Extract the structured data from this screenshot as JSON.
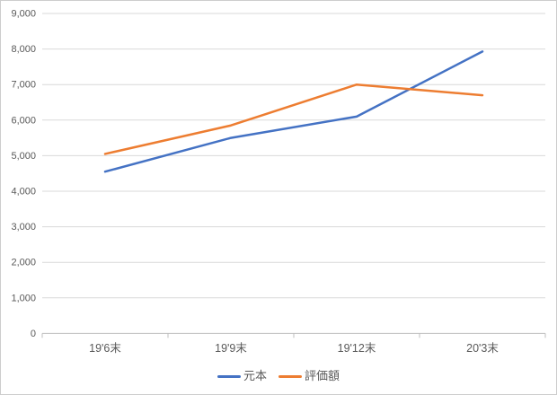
{
  "chart_data": {
    "type": "line",
    "title": "",
    "xlabel": "",
    "ylabel": "",
    "categories": [
      "19'6末",
      "19'9末",
      "19'12末",
      "20'3末"
    ],
    "series": [
      {
        "name": "元本",
        "color": "#4472C4",
        "values": [
          4550,
          5500,
          6100,
          7930
        ]
      },
      {
        "name": "評価額",
        "color": "#ED7D31",
        "values": [
          5050,
          5850,
          7000,
          6700
        ]
      }
    ],
    "ylim": [
      0,
      9000
    ],
    "ytick_interval": 1000,
    "ytick_labels": [
      "0",
      "1,000",
      "2,000",
      "3,000",
      "4,000",
      "5,000",
      "6,000",
      "7,000",
      "8,000",
      "9,000"
    ],
    "grid": true,
    "legend_position": "bottom"
  },
  "colors": {
    "background": "#FFFFFF",
    "gridline": "#D9D9D9",
    "axis_line": "#BFBFBF",
    "tick_mark": "#BFBFBF",
    "axis_text": "#595959",
    "chart_border": "#CDCDCD",
    "series_principal": "#4472C4",
    "series_valuation": "#ED7D31"
  }
}
